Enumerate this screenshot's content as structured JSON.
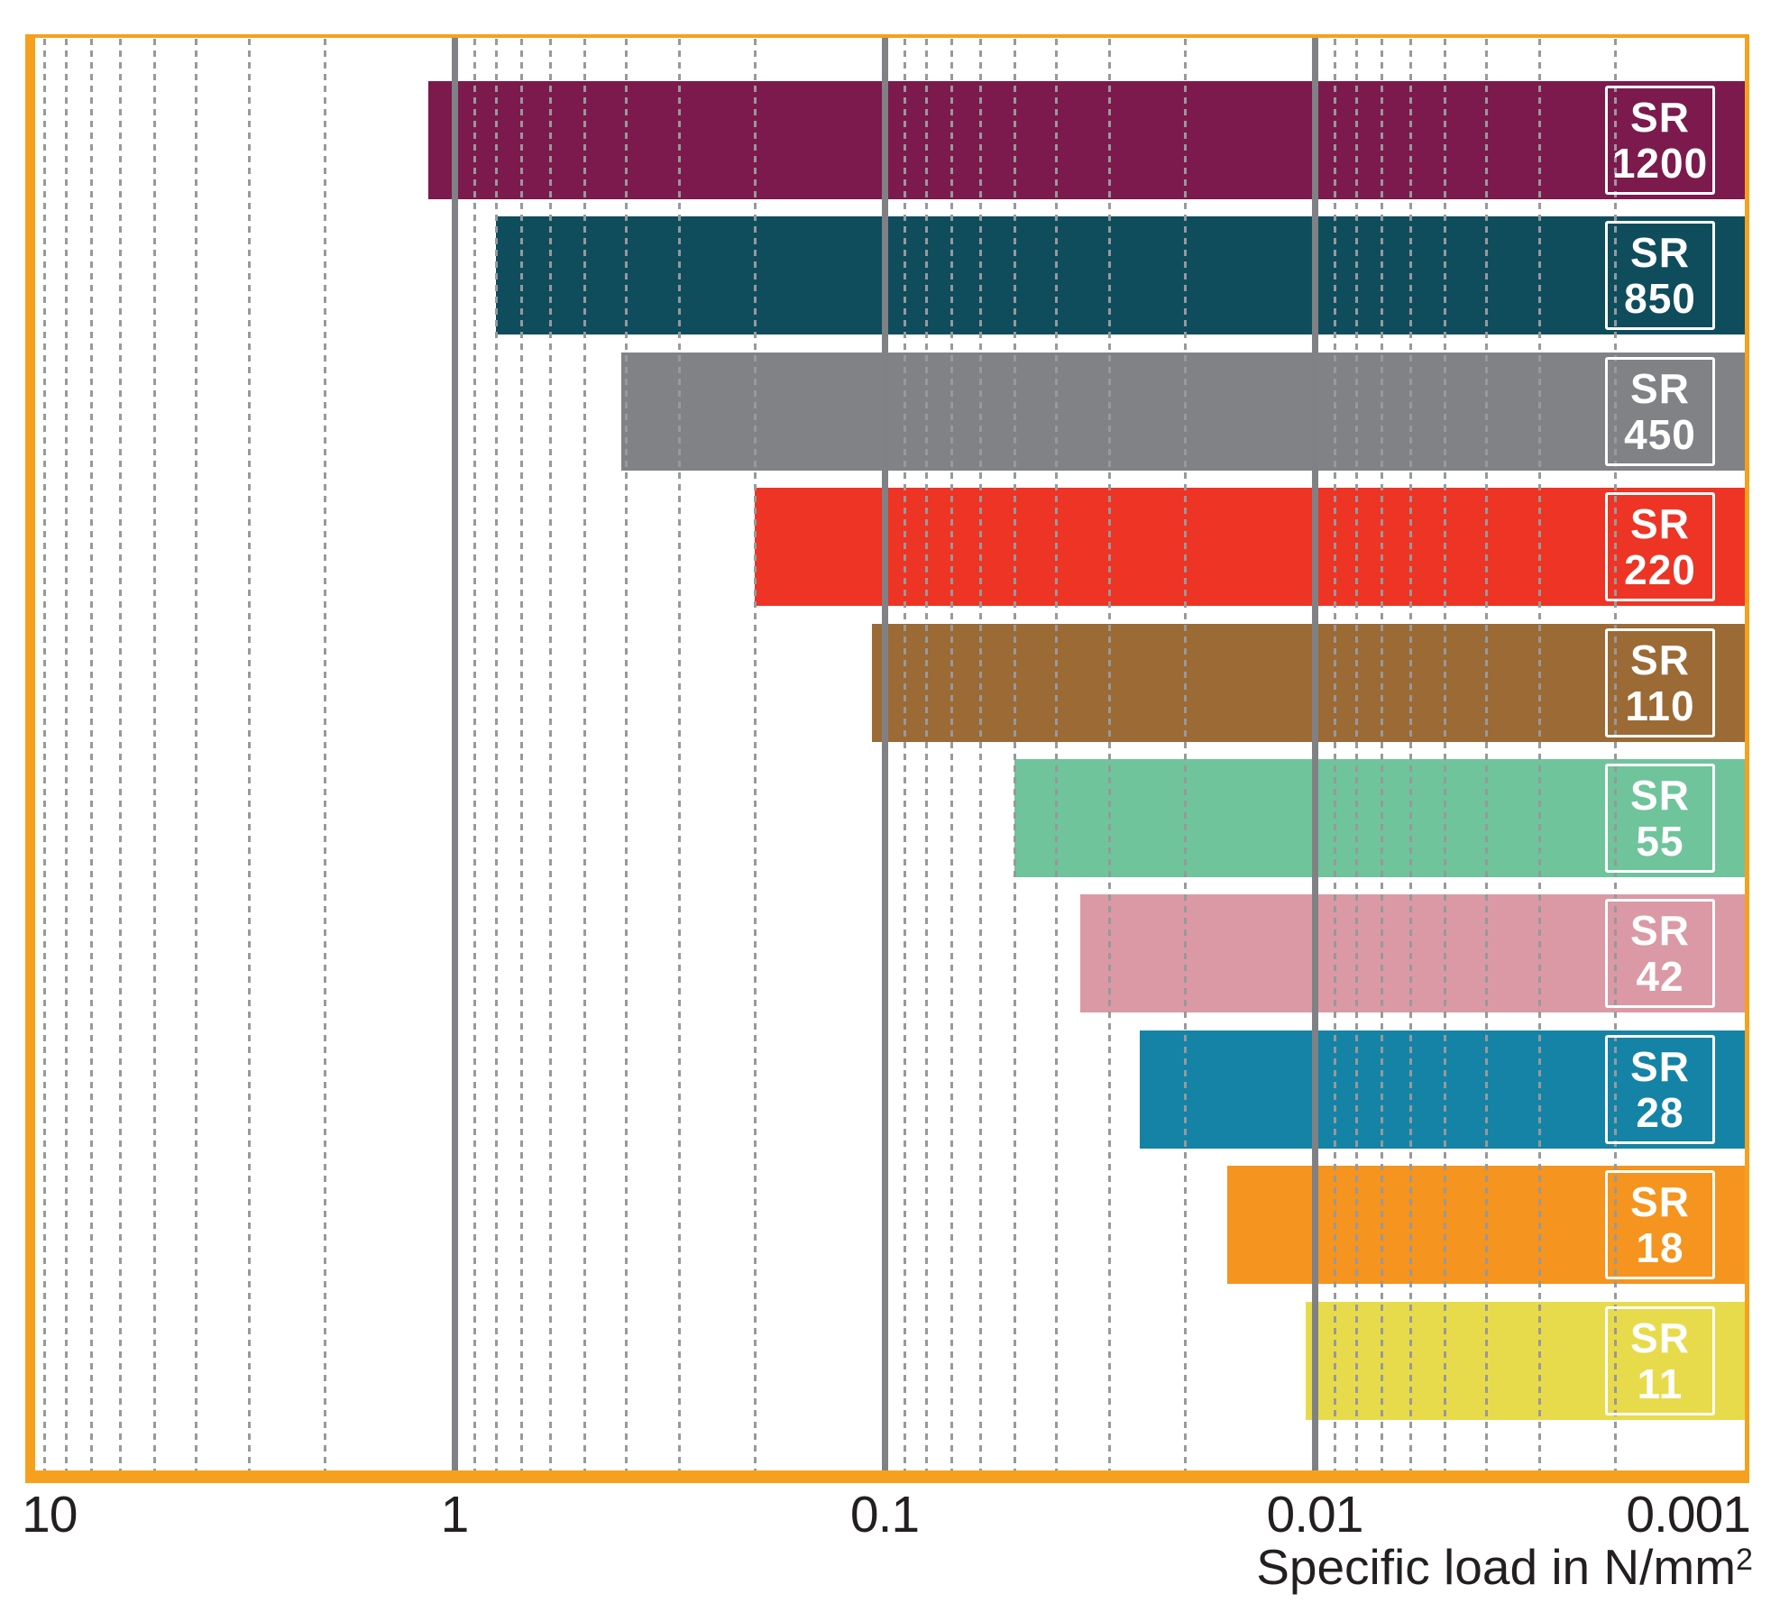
{
  "chart_data": {
    "type": "bar",
    "orientation": "horizontal",
    "xlabel": "Specific load in N/mm²",
    "xlabel_main": "Specific load in N/mm",
    "xlabel_sup": "2",
    "x_axis": {
      "scale": "log",
      "direction": "reversed-left-high",
      "left_value": 10,
      "right_value": 0.001,
      "ticks": [
        {
          "label": "10",
          "value": 10
        },
        {
          "label": "1",
          "value": 1
        },
        {
          "label": "0.1",
          "value": 0.1
        },
        {
          "label": "0.01",
          "value": 0.01
        },
        {
          "label": "0.001",
          "value": 0.001
        }
      ],
      "major_gridlines": [
        1,
        0.1,
        0.01
      ],
      "minor_gridline_decades": [
        0,
        -1,
        -2,
        -3
      ],
      "grid": "on"
    },
    "bars": [
      {
        "name": "SR 1200",
        "label_lines": [
          "SR",
          "1200"
        ],
        "color": "#7C1A4D",
        "load_start": 1.15,
        "load_end": 0.001
      },
      {
        "name": "SR 850",
        "label_lines": [
          "SR",
          "850"
        ],
        "color": "#0F4D5D",
        "load_start": 0.8,
        "load_end": 0.001
      },
      {
        "name": "SR 450",
        "label_lines": [
          "SR",
          "450"
        ],
        "color": "#808285",
        "load_start": 0.41,
        "load_end": 0.001
      },
      {
        "name": "SR 220",
        "label_lines": [
          "SR",
          "220"
        ],
        "color": "#EE3424",
        "load_start": 0.2,
        "load_end": 0.001
      },
      {
        "name": "SR 110",
        "label_lines": [
          "SR",
          "110"
        ],
        "color": "#9C6A35",
        "load_start": 0.107,
        "load_end": 0.001
      },
      {
        "name": "SR 55",
        "label_lines": [
          "SR",
          "55"
        ],
        "color": "#6FC49C",
        "load_start": 0.05,
        "load_end": 0.001
      },
      {
        "name": "SR 42",
        "label_lines": [
          "SR",
          "42"
        ],
        "color": "#DB99A5",
        "load_start": 0.035,
        "load_end": 0.001
      },
      {
        "name": "SR 28",
        "label_lines": [
          "SR",
          "28"
        ],
        "color": "#1583A5",
        "load_start": 0.0255,
        "load_end": 0.001
      },
      {
        "name": "SR 18",
        "label_lines": [
          "SR",
          "18"
        ],
        "color": "#F5941E",
        "load_start": 0.016,
        "load_end": 0.001
      },
      {
        "name": "SR 11",
        "label_lines": [
          "SR",
          "11"
        ],
        "color": "#E8DB4B",
        "load_start": 0.0105,
        "load_end": 0.001
      }
    ],
    "legend": "labels-on-bars"
  },
  "style": {
    "frame_color": "#F6A11E",
    "major_gridline_color": "#808184",
    "minor_gridline_color": "#97999B",
    "bar_label_text_color": "#FFFFFF",
    "axis_text_color": "#231F20",
    "background_color": "#FFFFFF"
  }
}
